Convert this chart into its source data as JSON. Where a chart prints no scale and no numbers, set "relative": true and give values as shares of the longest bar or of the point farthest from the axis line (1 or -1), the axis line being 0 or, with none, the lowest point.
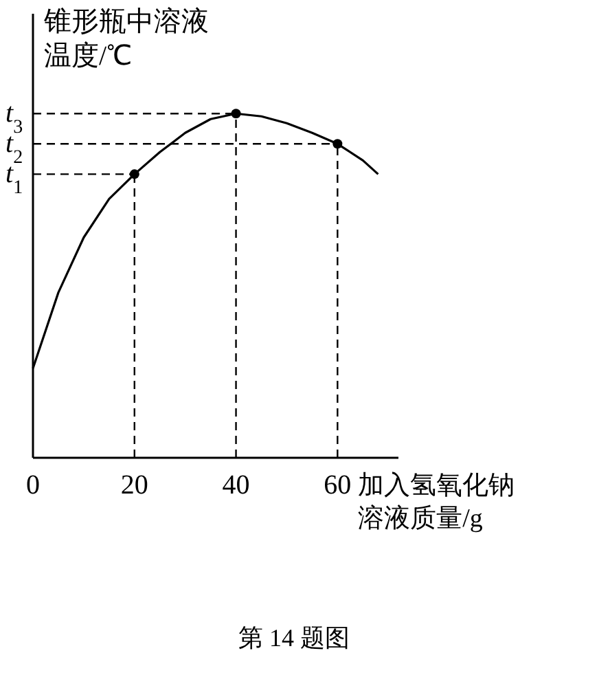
{
  "chart_data": {
    "type": "line",
    "relative": true,
    "ylabel": "锥形瓶中溶液温度/℃",
    "xlabel": "加入氢氧化钠溶液质量/g",
    "annotations": [
      "第 14 题图"
    ],
    "xlim": [
      0,
      72
    ],
    "xticks": [
      0,
      20,
      40,
      60
    ],
    "series": [
      {
        "color": "#000000",
        "marker": "none",
        "x": [
          0,
          5,
          10,
          15,
          20,
          25,
          30,
          35,
          40,
          45,
          50,
          55,
          60,
          65,
          68
        ],
        "values": [
          0.26,
          0.48,
          0.64,
          0.752,
          0.824,
          0.888,
          0.944,
          0.984,
          1,
          0.992,
          0.972,
          0.944,
          0.912,
          0.864,
          0.824
        ]
      },
      {
        "type": "scatter",
        "color": "#000000",
        "marker": "circle",
        "x": [
          20,
          40,
          60
        ],
        "values": [
          0.824,
          1,
          0.912
        ]
      }
    ],
    "ref_lines": [
      {
        "axis": "y",
        "value": 1,
        "label": "t$_{3}$",
        "line_style": "dashed"
      },
      {
        "axis": "y",
        "value": 0.912,
        "label": "t$_{2}$",
        "line_style": "dashed"
      },
      {
        "axis": "y",
        "value": 0.824,
        "label": "t$_{1}$",
        "line_style": "dashed"
      },
      {
        "axis": "x",
        "value": 20,
        "line_style": "dashed"
      },
      {
        "axis": "x",
        "value": 40,
        "line_style": "dashed"
      },
      {
        "axis": "x",
        "value": 60,
        "line_style": "dashed"
      }
    ]
  }
}
